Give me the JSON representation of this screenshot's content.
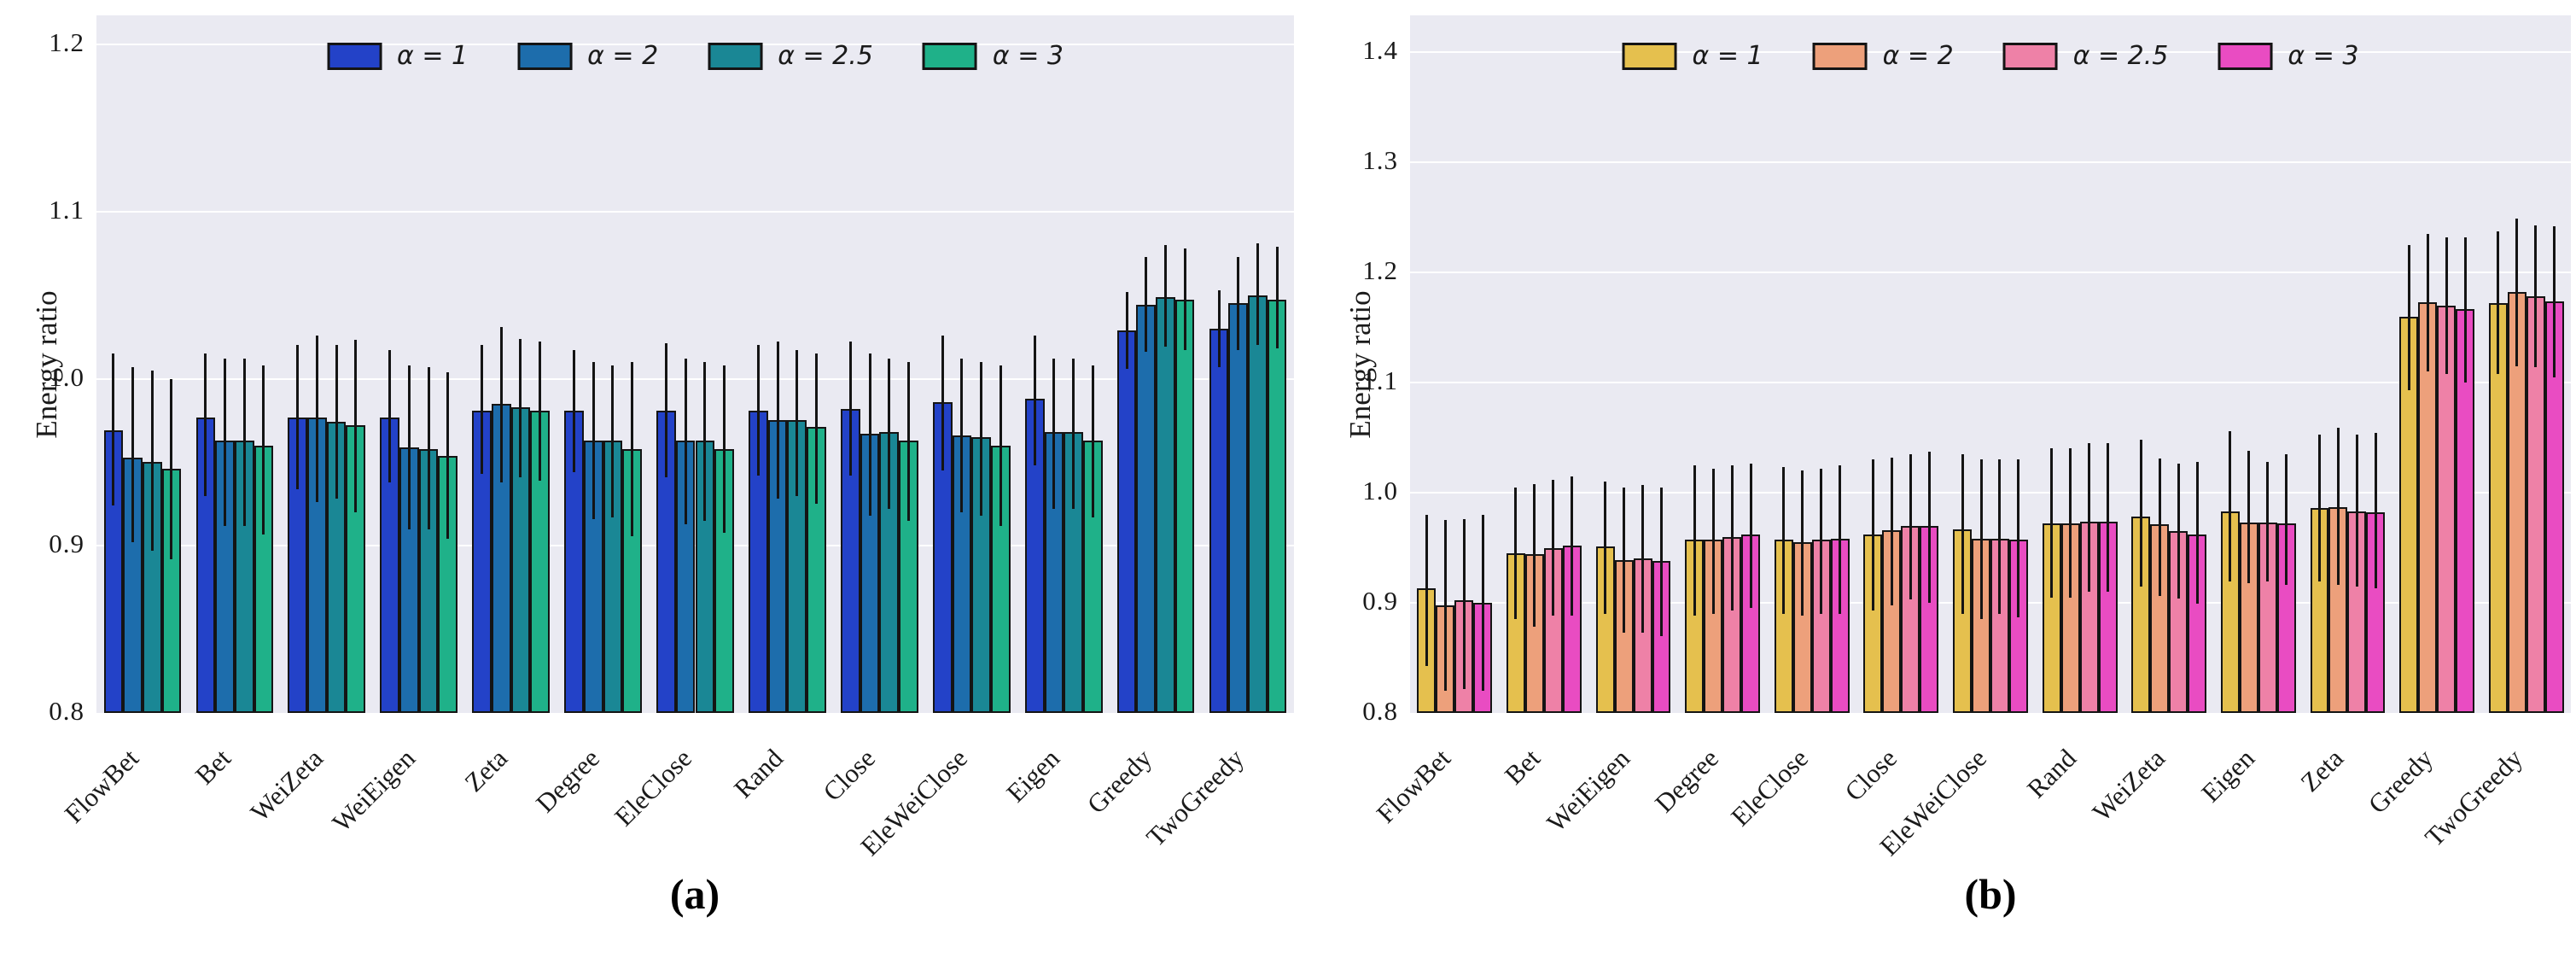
{
  "figure": {
    "ylabel": "Energy ratio",
    "captions": {
      "a": "(a)",
      "b": "(b)"
    }
  },
  "chart_data": [
    {
      "type": "bar",
      "title": "",
      "xlabel": "",
      "ylabel": "Energy ratio",
      "caption": "(a)",
      "ylim": [
        0.8,
        1.2
      ],
      "yticks": [
        "0.8",
        "0.9",
        "1.0",
        "1.1",
        "1.2"
      ],
      "grid": true,
      "legend_position": "upper center",
      "categories": [
        "FlowBet",
        "Bet",
        "WeiZeta",
        "WeiEigen",
        "Zeta",
        "Degree",
        "EleClose",
        "Rand",
        "Close",
        "EleWeiClose",
        "Eigen",
        "Greedy",
        "TwoGreedy"
      ],
      "series": [
        {
          "name": "α = 1",
          "color": "#2342c8",
          "values": [
            0.969,
            0.977,
            0.977,
            0.977,
            0.981,
            0.981,
            0.981,
            0.981,
            0.982,
            0.986,
            0.988,
            1.029,
            1.03
          ],
          "err_low": [
            0.924,
            0.93,
            0.934,
            0.938,
            0.943,
            0.944,
            0.941,
            0.942,
            0.942,
            0.945,
            0.948,
            1.006,
            1.007
          ],
          "err_high": [
            1.015,
            1.015,
            1.02,
            1.017,
            1.02,
            1.017,
            1.021,
            1.02,
            1.022,
            1.026,
            1.026,
            1.052,
            1.053
          ]
        },
        {
          "name": "α = 2",
          "color": "#1d6dac",
          "values": [
            0.953,
            0.963,
            0.977,
            0.959,
            0.985,
            0.963,
            0.963,
            0.975,
            0.967,
            0.966,
            0.968,
            1.044,
            1.045
          ],
          "err_low": [
            0.902,
            0.912,
            0.926,
            0.91,
            0.938,
            0.916,
            0.913,
            0.928,
            0.918,
            0.92,
            0.922,
            1.016,
            1.017
          ],
          "err_high": [
            1.007,
            1.012,
            1.026,
            1.008,
            1.031,
            1.01,
            1.012,
            1.022,
            1.015,
            1.012,
            1.012,
            1.073,
            1.073
          ]
        },
        {
          "name": "α = 2.5",
          "color": "#1a8795",
          "values": [
            0.95,
            0.963,
            0.974,
            0.958,
            0.983,
            0.963,
            0.963,
            0.975,
            0.968,
            0.965,
            0.968,
            1.049,
            1.05
          ],
          "err_low": [
            0.897,
            0.912,
            0.928,
            0.91,
            0.941,
            0.917,
            0.915,
            0.93,
            0.922,
            0.918,
            0.922,
            1.019,
            1.02
          ],
          "err_high": [
            1.005,
            1.012,
            1.02,
            1.007,
            1.024,
            1.008,
            1.01,
            1.017,
            1.012,
            1.01,
            1.012,
            1.08,
            1.081
          ]
        },
        {
          "name": "α = 3",
          "color": "#1fb189",
          "values": [
            0.946,
            0.96,
            0.972,
            0.954,
            0.981,
            0.958,
            0.958,
            0.971,
            0.963,
            0.96,
            0.963,
            1.047,
            1.047
          ],
          "err_low": [
            0.892,
            0.907,
            0.92,
            0.904,
            0.939,
            0.906,
            0.908,
            0.925,
            0.915,
            0.912,
            0.917,
            1.017,
            1.018
          ],
          "err_high": [
            1.0,
            1.008,
            1.023,
            1.004,
            1.022,
            1.01,
            1.008,
            1.015,
            1.01,
            1.008,
            1.008,
            1.078,
            1.079
          ]
        }
      ]
    },
    {
      "type": "bar",
      "title": "",
      "xlabel": "",
      "ylabel": "Energy ratio",
      "caption": "(b)",
      "ylim": [
        0.8,
        1.4
      ],
      "yticks": [
        "0.8",
        "0.9",
        "1.0",
        "1.1",
        "1.2",
        "1.3",
        "1.4"
      ],
      "grid": true,
      "legend_position": "upper center",
      "categories": [
        "FlowBet",
        "Bet",
        "WeiEigen",
        "Degree",
        "EleClose",
        "Close",
        "EleWeiClose",
        "Rand",
        "WeiZeta",
        "Eigen",
        "Zeta",
        "Greedy",
        "TwoGreedy"
      ],
      "series": [
        {
          "name": "α = 1",
          "color": "#e5c04e",
          "values": [
            0.913,
            0.945,
            0.951,
            0.957,
            0.957,
            0.962,
            0.967,
            0.972,
            0.978,
            0.983,
            0.986,
            1.16,
            1.172
          ],
          "err_low": [
            0.843,
            0.885,
            0.89,
            0.888,
            0.89,
            0.893,
            0.89,
            0.905,
            0.915,
            0.919,
            0.919,
            1.093,
            1.108
          ],
          "err_high": [
            0.98,
            1.005,
            1.01,
            1.025,
            1.023,
            1.03,
            1.035,
            1.04,
            1.048,
            1.056,
            1.053,
            1.225,
            1.237
          ]
        },
        {
          "name": "α = 2",
          "color": "#eda07b",
          "values": [
            0.898,
            0.944,
            0.939,
            0.957,
            0.955,
            0.966,
            0.958,
            0.972,
            0.971,
            0.973,
            0.987,
            1.173,
            1.182
          ],
          "err_low": [
            0.82,
            0.878,
            0.873,
            0.89,
            0.888,
            0.898,
            0.885,
            0.905,
            0.906,
            0.918,
            0.916,
            1.11,
            1.115
          ],
          "err_high": [
            0.975,
            1.008,
            1.005,
            1.022,
            1.02,
            1.032,
            1.03,
            1.04,
            1.031,
            1.038,
            1.059,
            1.235,
            1.249
          ]
        },
        {
          "name": "α = 2.5",
          "color": "#ee81a7",
          "values": [
            0.902,
            0.95,
            0.94,
            0.96,
            0.957,
            0.97,
            0.958,
            0.974,
            0.965,
            0.973,
            0.983,
            1.17,
            1.178
          ],
          "err_low": [
            0.822,
            0.888,
            0.873,
            0.893,
            0.89,
            0.903,
            0.89,
            0.91,
            0.904,
            0.919,
            0.915,
            1.108,
            1.114
          ],
          "err_high": [
            0.976,
            1.012,
            1.007,
            1.025,
            1.022,
            1.035,
            1.03,
            1.045,
            1.026,
            1.028,
            1.053,
            1.232,
            1.243
          ]
        },
        {
          "name": "α = 3",
          "color": "#e94cc2",
          "values": [
            0.9,
            0.952,
            0.938,
            0.962,
            0.958,
            0.97,
            0.957,
            0.974,
            0.962,
            0.972,
            0.982,
            1.167,
            1.174
          ],
          "err_low": [
            0.82,
            0.888,
            0.87,
            0.895,
            0.89,
            0.9,
            0.887,
            0.91,
            0.899,
            0.916,
            0.913,
            1.1,
            1.105
          ],
          "err_high": [
            0.98,
            1.015,
            1.005,
            1.026,
            1.025,
            1.037,
            1.03,
            1.045,
            1.028,
            1.035,
            1.054,
            1.232,
            1.242
          ]
        }
      ]
    }
  ]
}
